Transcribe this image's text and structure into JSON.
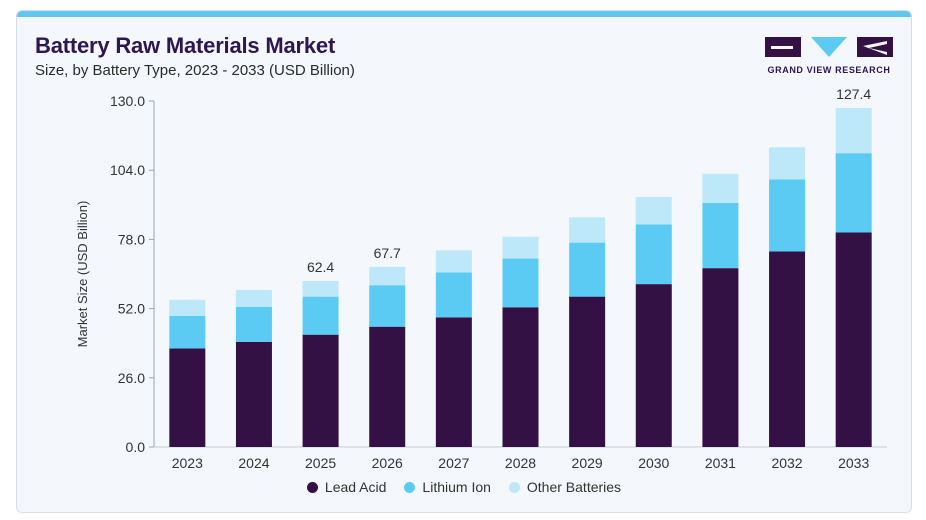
{
  "header": {
    "title": "Battery Raw Materials Market",
    "subtitle": "Size, by Battery Type, 2023 - 2033 (USD Billion)"
  },
  "logo": {
    "text": "GRAND VIEW RESEARCH"
  },
  "colors": {
    "lead_acid": "#341145",
    "lithium_ion": "#5ccbf4",
    "other_batteries": "#bde8f9",
    "accent": "#5fc8ee"
  },
  "chart_data": {
    "type": "bar",
    "stacked": true,
    "title": "Battery Raw Materials Market",
    "subtitle": "Size, by Battery Type, 2023 - 2033 (USD Billion)",
    "xlabel": "",
    "ylabel": "Market Size (USD Billion)",
    "ylim": [
      0,
      130
    ],
    "yticks": [
      "0.0",
      "26.0",
      "52.0",
      "78.0",
      "104.0",
      "130.0"
    ],
    "grid": false,
    "legend_position": "bottom",
    "categories": [
      "2023",
      "2024",
      "2025",
      "2026",
      "2027",
      "2028",
      "2029",
      "2030",
      "2031",
      "2032",
      "2033"
    ],
    "series": [
      {
        "name": "Lead Acid",
        "values": [
          37.0,
          39.5,
          42.2,
          45.2,
          48.7,
          52.5,
          56.5,
          61.2,
          67.2,
          73.5,
          80.6
        ]
      },
      {
        "name": "Lithium Ion",
        "values": [
          12.3,
          13.1,
          14.3,
          15.6,
          16.9,
          18.3,
          20.3,
          22.4,
          24.5,
          27.0,
          29.8
        ]
      },
      {
        "name": "Other Batteries",
        "values": [
          6.0,
          6.4,
          5.9,
          6.9,
          8.3,
          8.2,
          9.5,
          10.3,
          11.0,
          12.1,
          17.0
        ]
      }
    ],
    "annotations": [
      {
        "category": "2025",
        "label": "62.4"
      },
      {
        "category": "2026",
        "label": "67.7"
      },
      {
        "category": "2033",
        "label": "127.4"
      }
    ]
  }
}
